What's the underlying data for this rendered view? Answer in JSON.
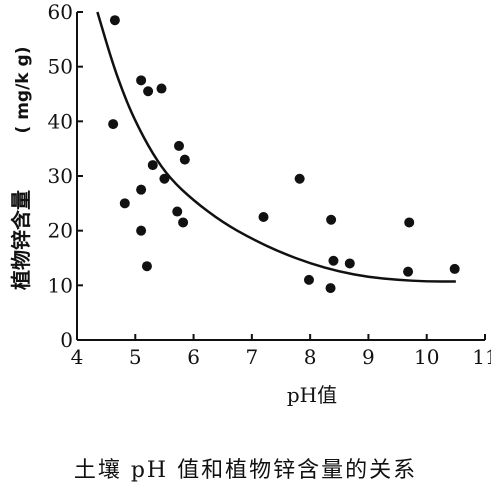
{
  "caption": "土壤 pH 值和植物锌含量的关系",
  "chart_data": {
    "type": "scatter",
    "xlabel": "pH值",
    "ylabel": "植物锌含量",
    "ylabel_unit": "( mg/k g)",
    "xlim": [
      4,
      11
    ],
    "ylim": [
      0,
      60
    ],
    "xticks": [
      4,
      5,
      6,
      7,
      8,
      9,
      10,
      11
    ],
    "yticks": [
      0,
      10,
      20,
      30,
      40,
      50,
      60
    ],
    "points": [
      {
        "x": 4.65,
        "y": 58.5
      },
      {
        "x": 4.62,
        "y": 39.5
      },
      {
        "x": 4.82,
        "y": 25
      },
      {
        "x": 5.1,
        "y": 47.5
      },
      {
        "x": 5.22,
        "y": 45.5
      },
      {
        "x": 5.45,
        "y": 46
      },
      {
        "x": 5.1,
        "y": 27.5
      },
      {
        "x": 5.3,
        "y": 32
      },
      {
        "x": 5.5,
        "y": 29.5
      },
      {
        "x": 5.1,
        "y": 20
      },
      {
        "x": 5.2,
        "y": 13.5
      },
      {
        "x": 5.75,
        "y": 35.5
      },
      {
        "x": 5.85,
        "y": 33
      },
      {
        "x": 5.72,
        "y": 23.5
      },
      {
        "x": 5.82,
        "y": 21.5
      },
      {
        "x": 7.2,
        "y": 22.5
      },
      {
        "x": 7.82,
        "y": 29.5
      },
      {
        "x": 7.98,
        "y": 11
      },
      {
        "x": 8.36,
        "y": 22
      },
      {
        "x": 8.4,
        "y": 14.5
      },
      {
        "x": 8.35,
        "y": 9.5
      },
      {
        "x": 8.68,
        "y": 14
      },
      {
        "x": 9.68,
        "y": 12.5
      },
      {
        "x": 9.7,
        "y": 21.5
      },
      {
        "x": 10.48,
        "y": 13
      }
    ],
    "trend_line": [
      {
        "x": 4.35,
        "y": 60
      },
      {
        "x": 4.6,
        "y": 51
      },
      {
        "x": 4.8,
        "y": 45
      },
      {
        "x": 5.0,
        "y": 40
      },
      {
        "x": 5.3,
        "y": 34
      },
      {
        "x": 5.6,
        "y": 29.5
      },
      {
        "x": 6.0,
        "y": 25.5
      },
      {
        "x": 6.5,
        "y": 21.5
      },
      {
        "x": 7.0,
        "y": 18.5
      },
      {
        "x": 7.5,
        "y": 16
      },
      {
        "x": 8.0,
        "y": 14
      },
      {
        "x": 8.5,
        "y": 12.5
      },
      {
        "x": 9.0,
        "y": 11.5
      },
      {
        "x": 9.5,
        "y": 11
      },
      {
        "x": 10.0,
        "y": 10.7
      },
      {
        "x": 10.5,
        "y": 10.7
      }
    ],
    "grid": false
  }
}
